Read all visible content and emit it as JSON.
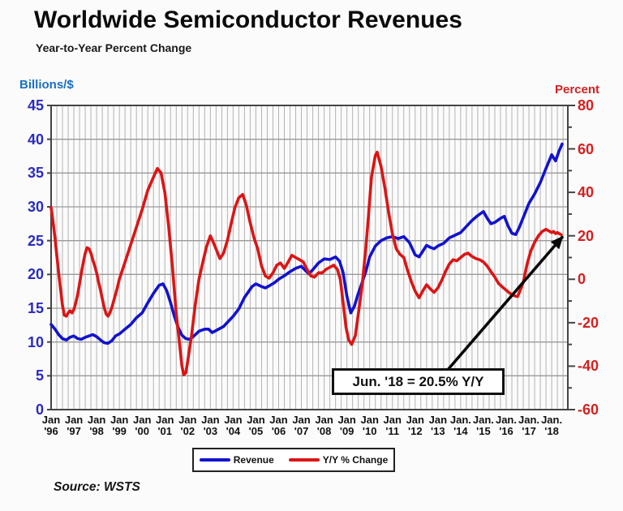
{
  "header": {
    "title": "Worldwide Semiconductor Revenues",
    "subtitle": "Year-to-Year Percent Change"
  },
  "source": "Source: WSTS",
  "chart_data": {
    "type": "line",
    "title": "Worldwide Semiconductor Revenues",
    "subtitle": "Year-to-Year Percent Change",
    "grid": true,
    "left_axis": {
      "label": "Billions/$",
      "min": 0,
      "max": 45,
      "tick_interval": 5,
      "tick_labels": [
        "45",
        "40",
        "35",
        "30",
        "25",
        "20",
        "15",
        "10",
        "5",
        "0"
      ]
    },
    "right_axis": {
      "label": "Percent",
      "min": -60,
      "max": 80,
      "tick_interval": 20,
      "minor_tick_interval": 10,
      "tick_labels": [
        "80",
        "60",
        "40",
        "20",
        "0",
        "-20",
        "-40",
        "-60"
      ]
    },
    "x_axis": {
      "start_year": 1996,
      "x_range_years": 22.71,
      "gridline_interval_years": 0.25,
      "ticks": [
        {
          "m": "Jan",
          "y": "'96"
        },
        {
          "m": "Jan",
          "y": "'97"
        },
        {
          "m": "Jan",
          "y": "'98"
        },
        {
          "m": "Jan",
          "y": "'99"
        },
        {
          "m": "Jan",
          "y": "'00"
        },
        {
          "m": "Jan",
          "y": "'01"
        },
        {
          "m": "Jan",
          "y": "'02"
        },
        {
          "m": "Jan",
          "y": "'03"
        },
        {
          "m": "Jan",
          "y": "'04"
        },
        {
          "m": "Jan",
          "y": "'05"
        },
        {
          "m": "Jan",
          "y": "'06"
        },
        {
          "m": "Jan",
          "y": "'07"
        },
        {
          "m": "Jan",
          "y": "'08"
        },
        {
          "m": "Jan",
          "y": "'09"
        },
        {
          "m": "Jan",
          "y": "'10"
        },
        {
          "m": "Jan",
          "y": "'11"
        },
        {
          "m": "Jan",
          "y": "'12"
        },
        {
          "m": "Jan",
          "y": "'13"
        },
        {
          "m": "Jan.",
          "y": "'14"
        },
        {
          "m": "Jan.",
          "y": "'15"
        },
        {
          "m": "Jan.",
          "y": "'16"
        },
        {
          "m": "Jan.",
          "y": "'17"
        },
        {
          "m": "Jan.",
          "y": "'18"
        }
      ]
    },
    "legend_position": "bottom-center",
    "annotation": {
      "text": "Jun. '18 = 20.5% Y/Y",
      "arrow_to": {
        "x": 22.42,
        "value": 20.5,
        "axis": "right"
      }
    },
    "series": [
      {
        "name": "Revenue",
        "axis": "left",
        "color": "#1212d0",
        "units": "billions $",
        "points": [
          [
            0.0,
            12.6
          ],
          [
            0.17,
            11.9
          ],
          [
            0.33,
            11.1
          ],
          [
            0.5,
            10.5
          ],
          [
            0.67,
            10.3
          ],
          [
            0.83,
            10.7
          ],
          [
            1.0,
            10.9
          ],
          [
            1.17,
            10.5
          ],
          [
            1.33,
            10.4
          ],
          [
            1.5,
            10.7
          ],
          [
            1.67,
            10.9
          ],
          [
            1.83,
            11.1
          ],
          [
            2.0,
            10.8
          ],
          [
            2.17,
            10.3
          ],
          [
            2.33,
            9.9
          ],
          [
            2.5,
            9.8
          ],
          [
            2.67,
            10.2
          ],
          [
            2.83,
            10.9
          ],
          [
            3.0,
            11.2
          ],
          [
            3.25,
            11.9
          ],
          [
            3.5,
            12.6
          ],
          [
            3.75,
            13.6
          ],
          [
            4.0,
            14.3
          ],
          [
            4.25,
            15.8
          ],
          [
            4.5,
            17.2
          ],
          [
            4.75,
            18.4
          ],
          [
            4.92,
            18.6
          ],
          [
            5.08,
            17.6
          ],
          [
            5.25,
            15.8
          ],
          [
            5.42,
            13.8
          ],
          [
            5.58,
            12.2
          ],
          [
            5.75,
            11.0
          ],
          [
            5.92,
            10.5
          ],
          [
            6.08,
            10.4
          ],
          [
            6.25,
            10.8
          ],
          [
            6.5,
            11.6
          ],
          [
            6.75,
            11.9
          ],
          [
            6.92,
            11.9
          ],
          [
            7.08,
            11.4
          ],
          [
            7.25,
            11.7
          ],
          [
            7.58,
            12.3
          ],
          [
            7.83,
            13.2
          ],
          [
            8.0,
            13.8
          ],
          [
            8.25,
            14.9
          ],
          [
            8.5,
            16.6
          ],
          [
            8.83,
            18.2
          ],
          [
            9.0,
            18.6
          ],
          [
            9.25,
            18.2
          ],
          [
            9.42,
            18.0
          ],
          [
            9.58,
            18.3
          ],
          [
            9.83,
            18.8
          ],
          [
            10.0,
            19.3
          ],
          [
            10.25,
            19.8
          ],
          [
            10.5,
            20.4
          ],
          [
            10.75,
            20.9
          ],
          [
            11.0,
            21.2
          ],
          [
            11.17,
            20.6
          ],
          [
            11.33,
            20.1
          ],
          [
            11.5,
            20.7
          ],
          [
            11.75,
            21.7
          ],
          [
            12.0,
            22.3
          ],
          [
            12.25,
            22.2
          ],
          [
            12.5,
            22.6
          ],
          [
            12.67,
            22.0
          ],
          [
            12.83,
            20.3
          ],
          [
            13.0,
            16.8
          ],
          [
            13.17,
            14.3
          ],
          [
            13.33,
            15.3
          ],
          [
            13.5,
            17.2
          ],
          [
            13.67,
            18.8
          ],
          [
            13.83,
            20.4
          ],
          [
            14.0,
            22.6
          ],
          [
            14.25,
            24.2
          ],
          [
            14.5,
            25.0
          ],
          [
            14.75,
            25.4
          ],
          [
            15.0,
            25.6
          ],
          [
            15.25,
            25.3
          ],
          [
            15.5,
            25.6
          ],
          [
            15.75,
            24.7
          ],
          [
            16.0,
            22.9
          ],
          [
            16.17,
            22.6
          ],
          [
            16.33,
            23.4
          ],
          [
            16.5,
            24.3
          ],
          [
            16.67,
            24.0
          ],
          [
            16.83,
            23.8
          ],
          [
            17.0,
            24.2
          ],
          [
            17.25,
            24.6
          ],
          [
            17.5,
            25.4
          ],
          [
            17.75,
            25.8
          ],
          [
            18.0,
            26.2
          ],
          [
            18.25,
            27.1
          ],
          [
            18.5,
            28.0
          ],
          [
            18.75,
            28.7
          ],
          [
            19.0,
            29.3
          ],
          [
            19.17,
            28.3
          ],
          [
            19.33,
            27.5
          ],
          [
            19.5,
            27.7
          ],
          [
            19.75,
            28.3
          ],
          [
            19.92,
            28.6
          ],
          [
            20.08,
            27.2
          ],
          [
            20.25,
            26.1
          ],
          [
            20.42,
            25.9
          ],
          [
            20.58,
            27.0
          ],
          [
            20.75,
            28.4
          ],
          [
            21.0,
            30.5
          ],
          [
            21.25,
            31.9
          ],
          [
            21.5,
            33.6
          ],
          [
            21.75,
            35.7
          ],
          [
            22.0,
            37.7
          ],
          [
            22.17,
            36.8
          ],
          [
            22.33,
            38.3
          ],
          [
            22.46,
            39.3
          ]
        ]
      },
      {
        "name": "Y/Y % Change",
        "axis": "right",
        "color": "#dd1414",
        "units": "percent",
        "points": [
          [
            0.0,
            33
          ],
          [
            0.08,
            27
          ],
          [
            0.17,
            19
          ],
          [
            0.25,
            11
          ],
          [
            0.33,
            3
          ],
          [
            0.42,
            -5
          ],
          [
            0.5,
            -12
          ],
          [
            0.58,
            -16.5
          ],
          [
            0.67,
            -17
          ],
          [
            0.75,
            -15.5
          ],
          [
            0.83,
            -14.5
          ],
          [
            0.92,
            -15.5
          ],
          [
            1.0,
            -14
          ],
          [
            1.08,
            -11
          ],
          [
            1.17,
            -7
          ],
          [
            1.25,
            -2
          ],
          [
            1.33,
            3
          ],
          [
            1.42,
            8
          ],
          [
            1.5,
            12
          ],
          [
            1.58,
            14.5
          ],
          [
            1.67,
            14
          ],
          [
            1.75,
            12
          ],
          [
            1.83,
            9
          ],
          [
            1.92,
            6
          ],
          [
            2.0,
            3
          ],
          [
            2.08,
            -1
          ],
          [
            2.17,
            -5
          ],
          [
            2.25,
            -9
          ],
          [
            2.33,
            -13
          ],
          [
            2.42,
            -16
          ],
          [
            2.5,
            -17
          ],
          [
            2.58,
            -15.5
          ],
          [
            2.67,
            -13
          ],
          [
            2.75,
            -10
          ],
          [
            2.83,
            -7
          ],
          [
            2.92,
            -3.5
          ],
          [
            3.0,
            0
          ],
          [
            3.25,
            8
          ],
          [
            3.5,
            16
          ],
          [
            3.75,
            24
          ],
          [
            4.0,
            32
          ],
          [
            4.25,
            41
          ],
          [
            4.5,
            47
          ],
          [
            4.67,
            51
          ],
          [
            4.83,
            49
          ],
          [
            5.0,
            40
          ],
          [
            5.17,
            24
          ],
          [
            5.33,
            6
          ],
          [
            5.5,
            -16
          ],
          [
            5.67,
            -32
          ],
          [
            5.75,
            -40
          ],
          [
            5.83,
            -44
          ],
          [
            5.92,
            -43
          ],
          [
            6.0,
            -38
          ],
          [
            6.17,
            -26
          ],
          [
            6.33,
            -12
          ],
          [
            6.5,
            0
          ],
          [
            6.67,
            8
          ],
          [
            6.83,
            15
          ],
          [
            7.0,
            20
          ],
          [
            7.17,
            16
          ],
          [
            7.42,
            9.5
          ],
          [
            7.58,
            12
          ],
          [
            7.75,
            18
          ],
          [
            7.92,
            26
          ],
          [
            8.08,
            33
          ],
          [
            8.25,
            37.5
          ],
          [
            8.42,
            39
          ],
          [
            8.58,
            34
          ],
          [
            8.75,
            26
          ],
          [
            8.92,
            19
          ],
          [
            9.08,
            14
          ],
          [
            9.25,
            6
          ],
          [
            9.42,
            1.5
          ],
          [
            9.58,
            0.5
          ],
          [
            9.75,
            3
          ],
          [
            9.92,
            6.5
          ],
          [
            10.08,
            7.5
          ],
          [
            10.25,
            5
          ],
          [
            10.42,
            8
          ],
          [
            10.58,
            11
          ],
          [
            10.75,
            10
          ],
          [
            10.92,
            9
          ],
          [
            11.08,
            8
          ],
          [
            11.25,
            4.5
          ],
          [
            11.42,
            1.5
          ],
          [
            11.58,
            1
          ],
          [
            11.75,
            3
          ],
          [
            11.92,
            3
          ],
          [
            12.08,
            4.5
          ],
          [
            12.25,
            5.5
          ],
          [
            12.42,
            6.5
          ],
          [
            12.58,
            4.5
          ],
          [
            12.71,
            0
          ],
          [
            12.87,
            -14
          ],
          [
            12.96,
            -22
          ],
          [
            13.08,
            -28
          ],
          [
            13.21,
            -30
          ],
          [
            13.37,
            -26
          ],
          [
            13.5,
            -16
          ],
          [
            13.67,
            -3
          ],
          [
            13.83,
            14
          ],
          [
            13.94,
            28
          ],
          [
            14.08,
            47
          ],
          [
            14.25,
            57
          ],
          [
            14.33,
            58.5
          ],
          [
            14.5,
            52
          ],
          [
            14.67,
            42
          ],
          [
            14.83,
            31
          ],
          [
            15.0,
            21
          ],
          [
            15.17,
            14
          ],
          [
            15.33,
            11.5
          ],
          [
            15.5,
            10
          ],
          [
            15.67,
            4
          ],
          [
            15.83,
            -1
          ],
          [
            16.0,
            -5.5
          ],
          [
            16.17,
            -8.5
          ],
          [
            16.33,
            -5.5
          ],
          [
            16.5,
            -2.5
          ],
          [
            16.67,
            -4.5
          ],
          [
            16.83,
            -6
          ],
          [
            17.0,
            -4
          ],
          [
            17.17,
            -0.5
          ],
          [
            17.33,
            3.5
          ],
          [
            17.5,
            7
          ],
          [
            17.67,
            9
          ],
          [
            17.83,
            8.5
          ],
          [
            18.0,
            10
          ],
          [
            18.17,
            11.5
          ],
          [
            18.33,
            12
          ],
          [
            18.5,
            10.5
          ],
          [
            18.67,
            9.5
          ],
          [
            18.83,
            9
          ],
          [
            19.0,
            8
          ],
          [
            19.17,
            6
          ],
          [
            19.33,
            3.5
          ],
          [
            19.5,
            1
          ],
          [
            19.67,
            -2
          ],
          [
            19.83,
            -3.5
          ],
          [
            20.0,
            -5
          ],
          [
            20.17,
            -6.5
          ],
          [
            20.33,
            -7.5
          ],
          [
            20.5,
            -8
          ],
          [
            20.58,
            -6
          ],
          [
            20.75,
            -1.5
          ],
          [
            20.92,
            7
          ],
          [
            21.08,
            13
          ],
          [
            21.25,
            17
          ],
          [
            21.42,
            20
          ],
          [
            21.58,
            22
          ],
          [
            21.75,
            23
          ],
          [
            21.83,
            22.5
          ],
          [
            22.0,
            21.5
          ],
          [
            22.08,
            22
          ],
          [
            22.17,
            21
          ],
          [
            22.25,
            21.5
          ],
          [
            22.33,
            21
          ],
          [
            22.42,
            20.5
          ]
        ]
      }
    ]
  }
}
